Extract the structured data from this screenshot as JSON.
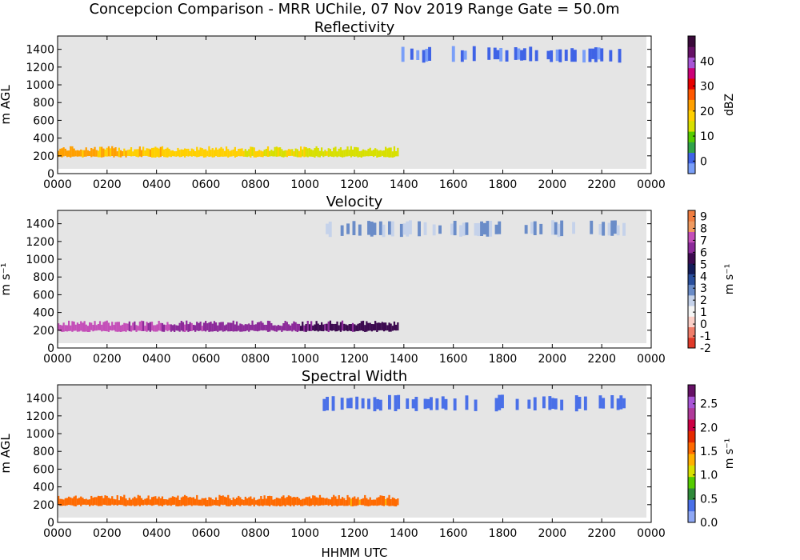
{
  "figure": {
    "title": "Concepcion Comparison - MRR UChile, 07 Nov 2019 Range Gate = 50.0m",
    "xlabel": "HHMM UTC"
  },
  "chart_data": [
    {
      "type": "heatmap",
      "title": "Reflectivity",
      "ylabel": "m AGL",
      "xlim": [
        0,
        24
      ],
      "ylim": [
        0,
        1550
      ],
      "xticks": [
        "0000",
        "0200",
        "0400",
        "0600",
        "0800",
        "1000",
        "1200",
        "1400",
        "1600",
        "1800",
        "2000",
        "2200",
        "0000"
      ],
      "yticks": [
        0,
        200,
        400,
        600,
        800,
        1000,
        1200,
        1400
      ],
      "background": "#e5e5e5",
      "colorbar": {
        "label": "dBZ",
        "range": [
          -5,
          50
        ],
        "ticks": [
          0,
          10,
          20,
          30,
          40
        ],
        "colors": [
          "#7a9ff8",
          "#3f63e6",
          "#30a34a",
          "#55cc00",
          "#d8e000",
          "#ffd000",
          "#ffa000",
          "#ff5800",
          "#e60000",
          "#cc0077",
          "#a855d6",
          "#661166",
          "#3a0a3a"
        ]
      },
      "layers": [
        {
          "label": "low echo band",
          "t_start": 0.0,
          "t_end": 13.75,
          "alt_base": 200,
          "alt_top": 250,
          "value_start": 22,
          "value_end": 13
        },
        {
          "label": "upper echoes",
          "t_start": 13.9,
          "t_end": 22.9,
          "alt_base": 1250,
          "alt_top": 1380,
          "value": 0
        }
      ]
    },
    {
      "type": "heatmap",
      "title": "Velocity",
      "ylabel": "m s⁻¹",
      "xlim": [
        0,
        24
      ],
      "ylim": [
        0,
        1550
      ],
      "xticks": [
        "0000",
        "0200",
        "0400",
        "0600",
        "0800",
        "1000",
        "1200",
        "1400",
        "1600",
        "1800",
        "2000",
        "2200",
        "0000"
      ],
      "yticks": [
        0,
        200,
        400,
        600,
        800,
        1000,
        1200,
        1400
      ],
      "background": "#e5e5e5",
      "colorbar": {
        "label": "m s⁻¹",
        "range": [
          -2,
          9.5
        ],
        "ticks": [
          -2,
          -1,
          0,
          1,
          2,
          3,
          4,
          5,
          6,
          7,
          8,
          9
        ],
        "colors": [
          "#e03a2a",
          "#f07d6a",
          "#fcd0c8",
          "#f5f5f5",
          "#c5d2ea",
          "#6a8cc8",
          "#2a4f9c",
          "#141c5a",
          "#3c0a50",
          "#8c2a9a",
          "#c44fb8",
          "#f09a60",
          "#f07d40"
        ]
      },
      "layers": [
        {
          "label": "low echo band",
          "t_start": 0.0,
          "t_end": 13.75,
          "alt_base": 200,
          "alt_top": 250,
          "value_start": 7.5,
          "value_end": 5.5
        },
        {
          "label": "upper echoes",
          "t_start": 10.0,
          "t_end": 22.9,
          "alt_base": 1250,
          "alt_top": 1380,
          "value": 2.5
        }
      ]
    },
    {
      "type": "heatmap",
      "title": "Spectral Width",
      "ylabel": "m AGL",
      "xlim": [
        0,
        24
      ],
      "ylim": [
        0,
        1550
      ],
      "xticks": [
        "0000",
        "0200",
        "0400",
        "0600",
        "0800",
        "1000",
        "1200",
        "1400",
        "1600",
        "1800",
        "2000",
        "2200",
        "0000"
      ],
      "yticks": [
        0,
        200,
        400,
        600,
        800,
        1000,
        1200,
        1400
      ],
      "background": "#e5e5e5",
      "colorbar": {
        "label": "m s⁻¹",
        "range": [
          0,
          2.9
        ],
        "ticks": [
          0.0,
          0.5,
          1.0,
          1.5,
          2.0,
          2.5
        ],
        "colors": [
          "#8fa8f5",
          "#4a70e8",
          "#2f8a3a",
          "#55cc00",
          "#d8e000",
          "#ffb000",
          "#ff6a00",
          "#e62a00",
          "#cc0044",
          "#b03a9a",
          "#a855d6",
          "#661166"
        ]
      },
      "layers": [
        {
          "label": "low echo band",
          "t_start": 0.0,
          "t_end": 13.75,
          "alt_base": 200,
          "alt_top": 250,
          "value_start": 1.6,
          "value_end": 1.5
        },
        {
          "label": "upper echoes",
          "t_start": 10.0,
          "t_end": 22.9,
          "alt_base": 1250,
          "alt_top": 1380,
          "value": 0.4
        }
      ]
    }
  ]
}
